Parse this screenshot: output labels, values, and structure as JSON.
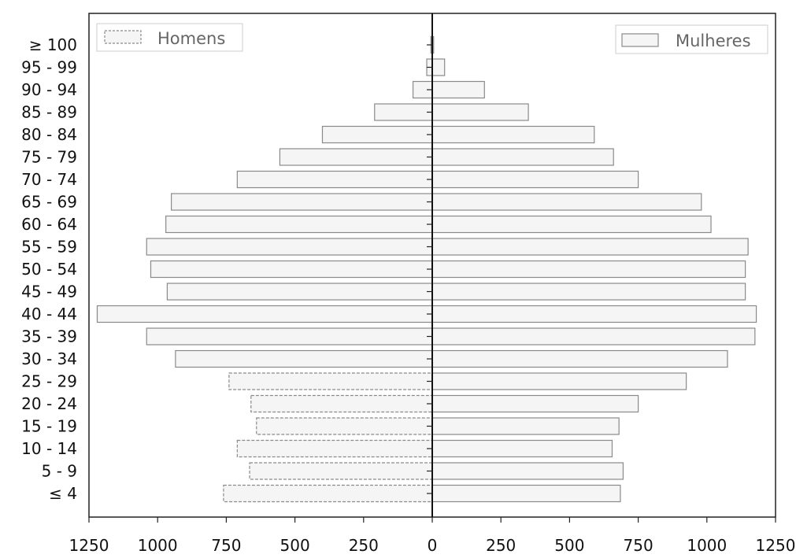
{
  "chart_data": {
    "type": "bar",
    "orientation": "horizontal",
    "layout": "population-pyramid",
    "title": "",
    "xlabel": "",
    "ylabel": "",
    "categories": [
      "≤ 4",
      "5 - 9",
      "10 - 14",
      "15 - 19",
      "20 - 24",
      "25 - 29",
      "30 - 34",
      "35 - 39",
      "40 - 44",
      "45 - 49",
      "50 - 54",
      "55 - 59",
      "60 - 64",
      "65 - 69",
      "70 - 74",
      "75 - 79",
      "80 - 84",
      "85 - 89",
      "90 - 94",
      "95 - 99",
      "≥ 100"
    ],
    "series": [
      {
        "name": "Homens",
        "side": "left",
        "values": [
          760,
          665,
          710,
          640,
          660,
          740,
          935,
          1040,
          1220,
          965,
          1025,
          1040,
          970,
          950,
          710,
          555,
          400,
          210,
          70,
          20,
          5
        ],
        "color": "#f5f5f5",
        "stroke": "#8a8a8a"
      },
      {
        "name": "Mulheres",
        "side": "right",
        "values": [
          685,
          695,
          655,
          680,
          750,
          925,
          1075,
          1175,
          1180,
          1140,
          1140,
          1150,
          1015,
          980,
          750,
          660,
          590,
          350,
          190,
          45,
          5
        ],
        "color": "#f5f5f5",
        "stroke": "#8a8a8a"
      }
    ],
    "xlim": [
      -1250,
      1250
    ],
    "xticks": [
      -1250,
      -1000,
      -750,
      -500,
      -250,
      0,
      250,
      500,
      750,
      1000,
      1250
    ],
    "xtick_labels": [
      "1250",
      "1000",
      "750",
      "500",
      "250",
      "0",
      "250",
      "500",
      "750",
      "1000",
      "1250"
    ],
    "legend": [
      {
        "label": "Homens",
        "position": "top-left"
      },
      {
        "label": "Mulheres",
        "position": "top-right"
      }
    ],
    "grid": false
  }
}
